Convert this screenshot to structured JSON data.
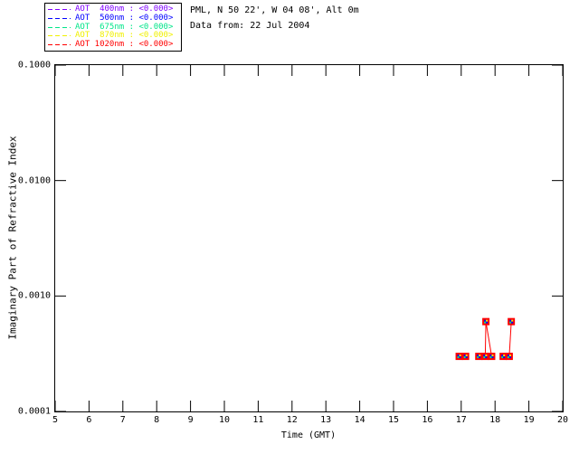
{
  "header": {
    "line1": "PML, N 50 22', W 04 08', Alt 0m",
    "line2": "Data from: 22 Jul 2004"
  },
  "legend": {
    "entries": [
      {
        "label": "AOT  400nm : <0.000>",
        "color": "#7f00ff"
      },
      {
        "label": "AOT  500nm : <0.000>",
        "color": "#0000ff"
      },
      {
        "label": "AOT  675nm : <0.000>",
        "color": "#00e589"
      },
      {
        "label": "AOT  870nm : <0.000>",
        "color": "#f0f000"
      },
      {
        "label": "AOT 1020nm : <0.000>",
        "color": "#ff0000"
      }
    ]
  },
  "chart_data": {
    "type": "line",
    "xlabel": "Time (GMT)",
    "ylabel": "Imaginary Part of Refractive Index",
    "xlim": [
      5,
      20
    ],
    "ylim": [
      0.0001,
      0.1
    ],
    "yscale": "log",
    "grid": false,
    "x_ticks": [
      5,
      6,
      7,
      8,
      9,
      10,
      11,
      12,
      13,
      14,
      15,
      16,
      17,
      18,
      19,
      20
    ],
    "y_ticks": [
      0.1,
      0.01,
      0.001,
      0.0001
    ],
    "y_tick_labels": [
      "0.1000",
      "0.0100",
      "0.0010",
      "0.0001"
    ],
    "series_names": [
      "AOT 400nm",
      "AOT 500nm",
      "AOT 675nm",
      "AOT 870nm",
      "AOT 1020nm"
    ],
    "series_colors": [
      "#7f00ff",
      "#0000ff",
      "#00e589",
      "#f0f000",
      "#ff0000"
    ],
    "overlap_note": "all five wavelength series plot identical overlapping points; red 1020nm drawn on top",
    "x": [
      16.94,
      17.13,
      17.52,
      17.71,
      17.73,
      17.9,
      18.24,
      18.42,
      18.48
    ],
    "y": [
      0.0003,
      0.0003,
      0.0003,
      0.0003,
      0.0006,
      0.0003,
      0.0003,
      0.0003,
      0.0006
    ],
    "connected_segments": [
      [
        3,
        4
      ],
      [
        4,
        5
      ],
      [
        7,
        8
      ]
    ],
    "line_color": "#ff0000",
    "marker": "multicolor-square",
    "marker_border_color": "#ff0000",
    "marker_fill_colors": [
      "#0000ff",
      "#f0f000",
      "#00e589",
      "#0000ff"
    ]
  }
}
